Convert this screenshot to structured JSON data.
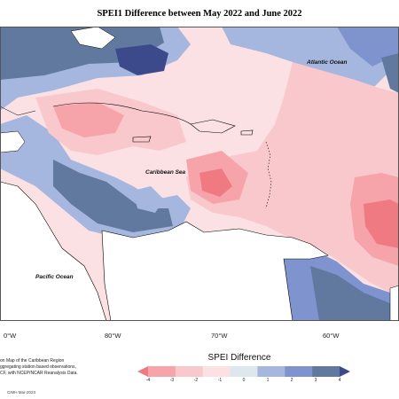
{
  "title": "SPEI1 Difference between May 2022 and June 2022",
  "map_labels": {
    "atlantic": "Atlantic Ocean",
    "caribbean": "Caribbean Sea",
    "pacific": "Pacific Ocean"
  },
  "longitude_labels": [
    "0°W",
    "80°W",
    "70°W",
    "60°W"
  ],
  "credit_lines": [
    "on Map of the Caribbean Region",
    "ggregating station based observations,",
    "CF, with NCEP/NCAR Reanalysis Data."
  ],
  "footer_id": "CIMH Mar-2023",
  "legend": {
    "title": "SPEI Difference",
    "ticks": [
      "-4",
      "-3",
      "-2",
      "-1",
      "0",
      "1",
      "2",
      "3",
      "4"
    ],
    "colors": [
      "#f07a82",
      "#f6a4aa",
      "#f9c8cc",
      "#fbe1e3",
      "#dde8ee",
      "#a6b7df",
      "#7f93cf",
      "#61789f",
      "#3c4a8c"
    ]
  },
  "colors": {
    "strong_dry": "#f07a82",
    "dry": "#f6a4aa",
    "mild_dry": "#f9c8cc",
    "slight_dry": "#fbe1e3",
    "neutral": "#dde8ee",
    "wet": "#a6b7df",
    "very_wet": "#7f93cf",
    "grey_wet": "#61789f",
    "extreme_wet": "#3c4a8c"
  }
}
